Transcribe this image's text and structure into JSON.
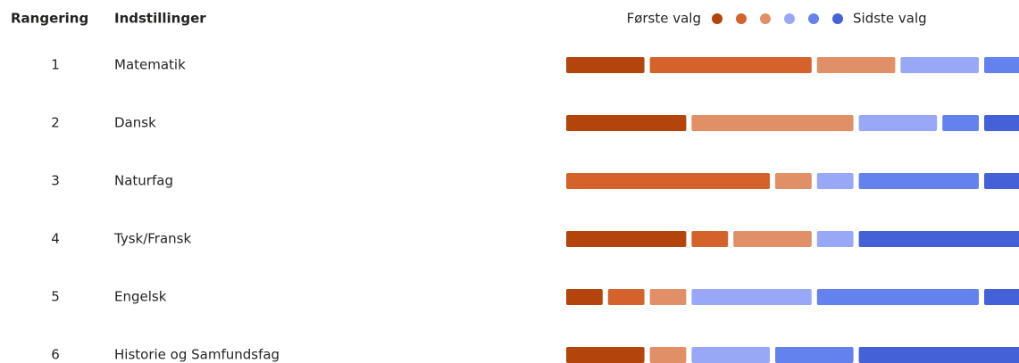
{
  "chart_data": {
    "type": "ranking",
    "rank_header": "Rangering",
    "label_header": "Indstillinger",
    "legend": {
      "first": "Første valg",
      "last": "Sidste valg"
    },
    "ranks": [
      1,
      2,
      3,
      4,
      5,
      6
    ],
    "categories": [
      "Matematik",
      "Dansk",
      "Naturfag",
      "Tysk/Fransk",
      "Engelsk",
      "Historie og Samfundsfag"
    ],
    "series": [
      {
        "color": "#b3440b",
        "values": [
          2,
          3,
          0,
          3,
          1,
          2
        ]
      },
      {
        "color": "#d4622a",
        "values": [
          4,
          0,
          5,
          1,
          1,
          0
        ]
      },
      {
        "color": "#e08f66",
        "values": [
          2,
          4,
          1,
          2,
          1,
          1
        ]
      },
      {
        "color": "#98a8f6",
        "values": [
          2,
          2,
          1,
          1,
          3,
          2
        ]
      },
      {
        "color": "#6382ee",
        "values": [
          1,
          1,
          3,
          0,
          4,
          2
        ]
      },
      {
        "color": "#4461d8",
        "values": [
          0,
          1,
          1,
          4,
          1,
          4
        ]
      }
    ]
  }
}
